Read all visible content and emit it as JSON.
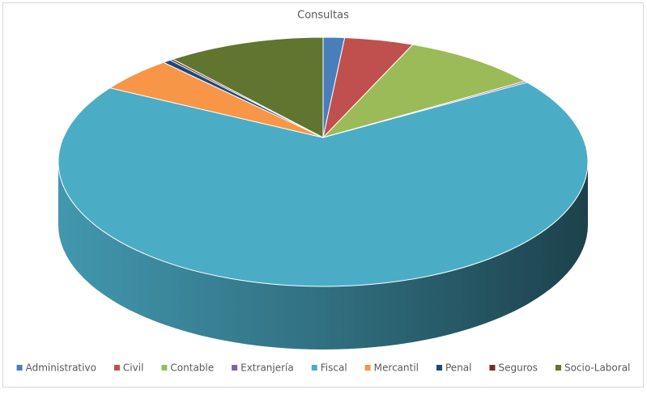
{
  "chart_data": {
    "type": "pie3d",
    "title": "Consultas",
    "categories": [
      "Administrativo",
      "Civil",
      "Contable",
      "Extranjería",
      "Fiscal",
      "Mercantil",
      "Penal",
      "Seguros",
      "Socio-Laboral"
    ],
    "values": [
      1.3,
      4.2,
      8.3,
      0.2,
      71.1,
      4.6,
      0.5,
      0.2,
      9.6
    ],
    "colors": [
      "#4a7ebb",
      "#c0504d",
      "#9bbb59",
      "#8064a2",
      "#4bacc6",
      "#f79646",
      "#1f497d",
      "#772c2a",
      "#5f7530"
    ],
    "legend": "bottom"
  }
}
